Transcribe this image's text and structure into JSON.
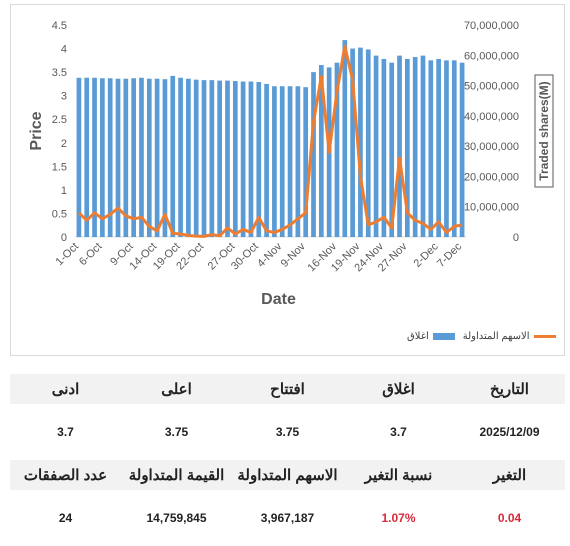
{
  "colors": {
    "bars": "#5b9bd5",
    "line": "#ed7d31",
    "positive_change": "#d9293a"
  },
  "chart_data": {
    "type": "bar+line",
    "xlabel": "Date",
    "ylabel_left": "Price",
    "ylabel_right": "Traded shares(M)",
    "y_left_range": [
      0,
      4.5
    ],
    "y_left_ticks": [
      "0",
      "0.5",
      "1",
      "1.5",
      "2",
      "2.5",
      "3",
      "3.5",
      "4",
      "4.5"
    ],
    "y_right_range": [
      0,
      70000000
    ],
    "y_right_ticks": [
      "0",
      "10,000,000",
      "20,000,000",
      "30,000,000",
      "40,000,000",
      "50,000,000",
      "60,000,000",
      "70,000,000"
    ],
    "x_tick_labels": [
      "1-Oct",
      "6-Oct",
      "9-Oct",
      "14-Oct",
      "19-Oct",
      "22-Oct",
      "27-Oct",
      "30-Oct",
      "4-Nov",
      "9-Nov",
      "16-Nov",
      "19-Nov",
      "24-Nov",
      "27-Nov",
      "2-Dec",
      "7-Dec"
    ],
    "grid": false,
    "legend_position": "bottom-right",
    "series": [
      {
        "name": "اغلاق",
        "type": "bar",
        "axis": "left",
        "values": [
          3.38,
          3.38,
          3.38,
          3.37,
          3.37,
          3.36,
          3.36,
          3.37,
          3.38,
          3.36,
          3.36,
          3.35,
          3.42,
          3.38,
          3.36,
          3.34,
          3.33,
          3.33,
          3.32,
          3.32,
          3.31,
          3.3,
          3.3,
          3.29,
          3.25,
          3.2,
          3.2,
          3.2,
          3.2,
          3.18,
          3.5,
          3.65,
          3.6,
          3.7,
          4.18,
          4.0,
          4.02,
          3.98,
          3.85,
          3.78,
          3.7,
          3.85,
          3.78,
          3.82,
          3.85,
          3.75,
          3.78,
          3.75,
          3.75,
          3.7
        ]
      },
      {
        "name": "الاسهم المتداولة",
        "type": "line",
        "axis": "right",
        "values": [
          8000000,
          5500000,
          8000000,
          6000000,
          7500000,
          9500000,
          7000000,
          6000000,
          6500000,
          3500000,
          2000000,
          7500000,
          1200000,
          1000000,
          500000,
          300000,
          200000,
          800000,
          400000,
          3000000,
          1000000,
          2500000,
          1500000,
          6500000,
          2000000,
          1500000,
          2500000,
          4000000,
          6000000,
          8000000,
          38000000,
          53000000,
          28000000,
          48000000,
          63000000,
          52000000,
          20000000,
          4000000,
          5000000,
          6500000,
          3000000,
          26000000,
          8000000,
          5500000,
          4500000,
          2500000,
          5000000,
          1500000,
          3500000,
          4000000
        ]
      }
    ]
  },
  "legend": {
    "line_label": "الاسهم المتداولة",
    "bar_label": "اغلاق"
  },
  "table": {
    "row1_headers": [
      "التاريخ",
      "اغلاق",
      "افتتاح",
      "اعلى",
      "ادنى"
    ],
    "row1_values": [
      "2025/12/09",
      "3.7",
      "3.75",
      "3.75",
      "3.7"
    ],
    "row2_headers": [
      "التغير",
      "نسبة التغير",
      "الاسهم المتداولة",
      "القيمة المتداولة",
      "عدد الصفقات"
    ],
    "row2_values": [
      "0.04",
      "1.07%",
      "3,967,187",
      "14,759,845",
      "24"
    ]
  }
}
